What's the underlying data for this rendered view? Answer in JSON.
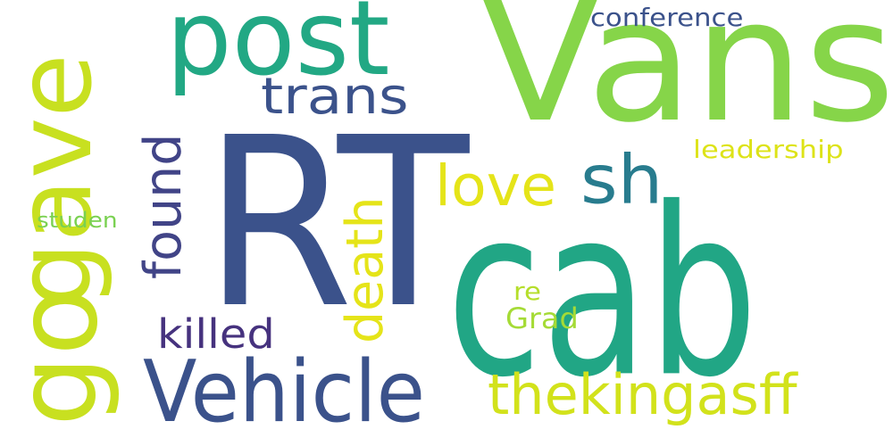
{
  "words": [
    {
      "id": "rt",
      "text": "RT",
      "color": "#3b528b",
      "vertical": false
    },
    {
      "id": "cab",
      "text": "cab",
      "color": "#21a685",
      "vertical": false
    },
    {
      "id": "vans",
      "text": "Vans",
      "color": "#86d549",
      "vertical": false
    },
    {
      "id": "gave",
      "text": "gave",
      "color": "#c8e020",
      "vertical": true
    },
    {
      "id": "go",
      "text": "go",
      "color": "#c8e020",
      "vertical": true
    },
    {
      "id": "post",
      "text": "post",
      "color": "#22a884",
      "vertical": false
    },
    {
      "id": "vehicle",
      "text": "Vehicle",
      "color": "#3b528b",
      "vertical": false
    },
    {
      "id": "thekingasff",
      "text": "thekingasff",
      "color": "#d2e21b",
      "vertical": false
    },
    {
      "id": "sh",
      "text": "sh",
      "color": "#287c8e",
      "vertical": false
    },
    {
      "id": "love",
      "text": "love",
      "color": "#e5e419",
      "vertical": false
    },
    {
      "id": "trans",
      "text": "trans",
      "color": "#3b528b",
      "vertical": false
    },
    {
      "id": "found",
      "text": "found",
      "color": "#414487",
      "vertical": true
    },
    {
      "id": "death",
      "text": "death",
      "color": "#e5e419",
      "vertical": true
    },
    {
      "id": "killed",
      "text": "killed",
      "color": "#46327e",
      "vertical": false
    },
    {
      "id": "conference",
      "text": "conference",
      "color": "#3b528b",
      "vertical": false
    },
    {
      "id": "leadership",
      "text": "leadership",
      "color": "#dde318",
      "vertical": false
    },
    {
      "id": "studen",
      "text": "studen",
      "color": "#7ad151",
      "vertical": false
    },
    {
      "id": "re",
      "text": "re",
      "color": "#b5de2b",
      "vertical": false
    },
    {
      "id": "grad",
      "text": "Grad",
      "color": "#a5db36",
      "vertical": false
    }
  ]
}
